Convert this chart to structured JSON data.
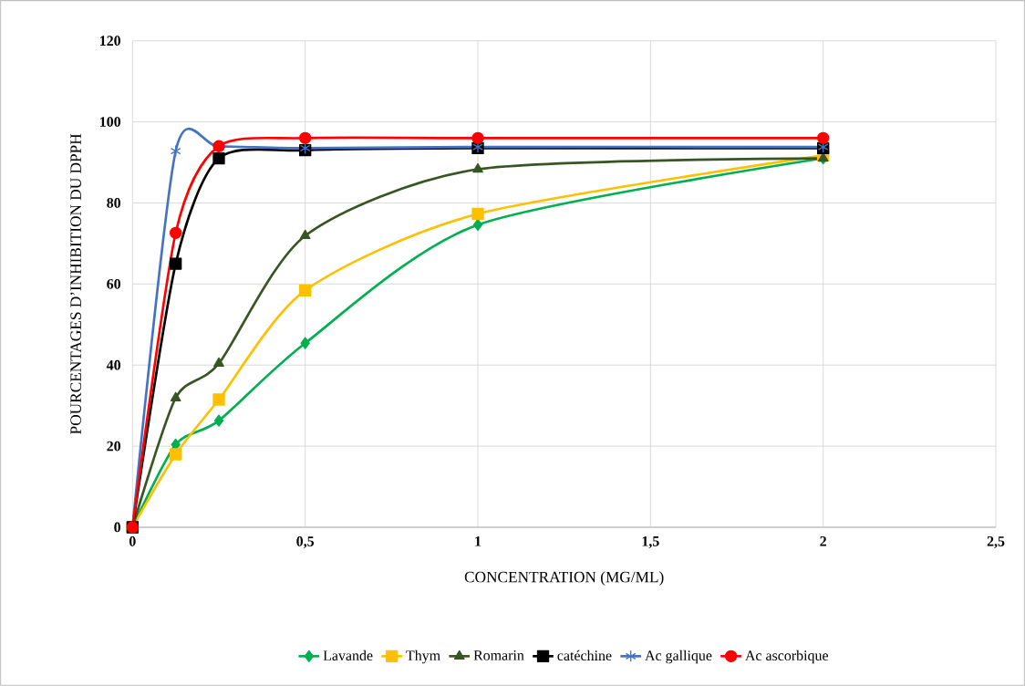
{
  "chart_data": {
    "type": "line",
    "xlabel": "CONCENTRATION (MG/ML)",
    "ylabel": "POURCENTAGES D’INHIBITION DU DPPH",
    "x": [
      0,
      0.125,
      0.25,
      0.5,
      1,
      2
    ],
    "xlim": [
      0,
      2.5
    ],
    "xticks": [
      0,
      {
        "value": 0.5,
        "label": "0,5"
      },
      1,
      {
        "value": 1.5,
        "label": "1,5"
      },
      2,
      {
        "value": 2.5,
        "label": "2,5"
      }
    ],
    "ylim": [
      0,
      120
    ],
    "yticks": [
      0,
      20,
      40,
      60,
      80,
      100,
      120
    ],
    "grid": true,
    "legend": "bottom",
    "line_style": "solid",
    "series": [
      {
        "name": "Lavande",
        "color": "#00b050",
        "marker": "diamond",
        "values": [
          0,
          20.4,
          26.3,
          45.4,
          74.6,
          91
        ]
      },
      {
        "name": "Thym",
        "color": "#ffc000",
        "marker": "square",
        "values": [
          0,
          18,
          31.5,
          58.4,
          77.3,
          91.7
        ]
      },
      {
        "name": "Romarin",
        "color": "#375623",
        "marker": "triangle",
        "values": [
          0,
          31.9,
          40.4,
          71.9,
          88.3,
          91
        ]
      },
      {
        "name": "catéchine",
        "color": "#000000",
        "marker": "square",
        "values": [
          0,
          65,
          91,
          93,
          93.5,
          93.5
        ]
      },
      {
        "name": "Ac gallique",
        "color": "#4472c4",
        "marker": "cross",
        "values": [
          0,
          92.8,
          93.9,
          93.5,
          93.8,
          93.8
        ]
      },
      {
        "name": "Ac ascorbique",
        "color": "#ff0000",
        "marker": "circle",
        "values": [
          0,
          72.6,
          94,
          96,
          96,
          96
        ]
      }
    ]
  }
}
